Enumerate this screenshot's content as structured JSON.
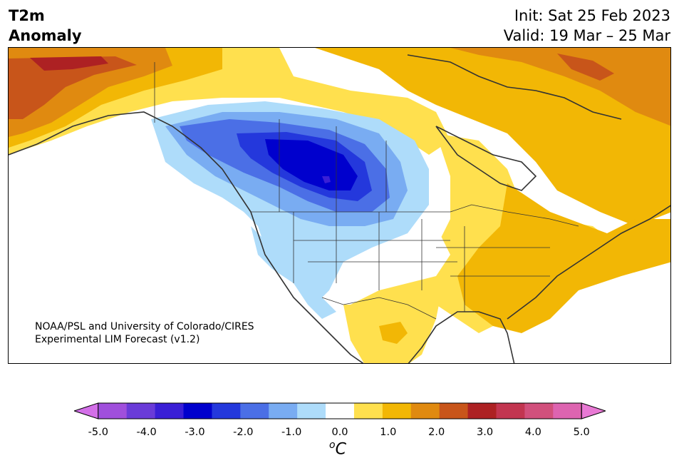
{
  "title": {
    "left_line1": "T2m",
    "left_line2": "Anomaly",
    "init": "Init: Sat 25 Feb 2023",
    "valid": "Valid: 19 Mar – 25 Mar"
  },
  "credit": {
    "line1": "NOAA/PSL and University of Colorado/CIRES",
    "line2": "Experimental LIM Forecast (v1.2)"
  },
  "colorbar": {
    "unit_prefix": "o",
    "unit_main": "C",
    "levels": [
      -5.0,
      -4.5,
      -4.0,
      -3.5,
      -3.0,
      -2.5,
      -2.0,
      -1.5,
      -1.0,
      -0.5,
      0.5,
      1.0,
      1.5,
      2.0,
      2.5,
      3.0,
      3.5,
      4.0,
      4.5,
      5.0
    ],
    "colors": [
      "#d36fe8",
      "#a04fdc",
      "#6a3bd8",
      "#3a1fd6",
      "#0000cd",
      "#2438dc",
      "#4b6fe6",
      "#79acf2",
      "#aedcfa",
      "#ffffff",
      "#ffe04e",
      "#f2b705",
      "#e08a10",
      "#c8551a",
      "#ad2123",
      "#c23550",
      "#d1507c",
      "#dd64b0",
      "#e879d4"
    ],
    "tick_labels": [
      "-5.0",
      "-4.0",
      "-3.0",
      "-2.0",
      "-1.0",
      "0.0",
      "1.0",
      "2.0",
      "3.0",
      "4.0",
      "5.0"
    ]
  },
  "map": {
    "region": "North America",
    "variable": "2m temperature anomaly"
  }
}
